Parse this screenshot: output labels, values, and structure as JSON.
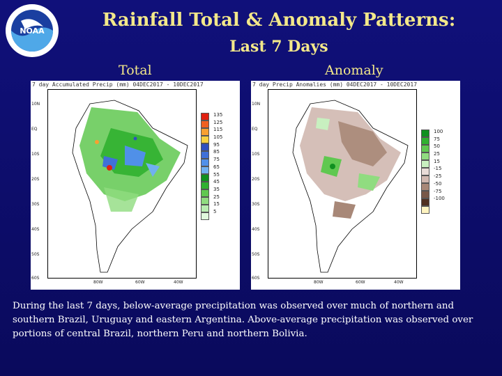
{
  "slide": {
    "title_line1": "Rainfall Total & Anomaly Patterns:",
    "title_line2": "Last 7 Days",
    "total_label": "Total",
    "anomaly_label": "Anomaly",
    "caption": "During the last 7 days, below-average precipitation was observed over much of northern and southern Brazil, Uruguay and eastern Argentina. Above-average precipitation was observed over portions of central Brazil, northern Peru and northern Bolivia."
  },
  "logo": {
    "text": "NOAA",
    "icon": "noaa-logo-icon"
  },
  "total_map": {
    "header": "7 day Accumulated Precip (mm) 04DEC2017 - 10DEC2017",
    "lat_labels": [
      "10N",
      "EQ",
      "10S",
      "20S",
      "30S",
      "40S",
      "50S",
      "60S"
    ],
    "lon_labels": [
      "80W",
      "60W",
      "40W"
    ],
    "legend": [
      {
        "value": "135",
        "color": "#e02010"
      },
      {
        "value": "125",
        "color": "#f06020"
      },
      {
        "value": "115",
        "color": "#f8a030"
      },
      {
        "value": "105",
        "color": "#f8d040"
      },
      {
        "value": "95",
        "color": "#3050c0"
      },
      {
        "value": "85",
        "color": "#4070d8"
      },
      {
        "value": "75",
        "color": "#5090e8"
      },
      {
        "value": "65",
        "color": "#70b0f0"
      },
      {
        "value": "55",
        "color": "#109020"
      },
      {
        "value": "45",
        "color": "#30b030"
      },
      {
        "value": "35",
        "color": "#60c850"
      },
      {
        "value": "25",
        "color": "#90dc80"
      },
      {
        "value": "15",
        "color": "#b8ecb0"
      },
      {
        "value": "5",
        "color": "#e0f8dc"
      }
    ]
  },
  "anomaly_map": {
    "header": "7 day Precip Anomalies (mm) 04DEC2017 - 10DEC2017",
    "lat_labels": [
      "10N",
      "EQ",
      "10S",
      "20S",
      "30S",
      "40S",
      "50S",
      "60S"
    ],
    "lon_labels": [
      "80W",
      "60W",
      "40W"
    ],
    "legend": [
      {
        "value": "100",
        "color": "#109020"
      },
      {
        "value": "75",
        "color": "#30b030"
      },
      {
        "value": "50",
        "color": "#60c850"
      },
      {
        "value": "25",
        "color": "#90dc80"
      },
      {
        "value": "15",
        "color": "#c8f0c0"
      },
      {
        "value": "-15",
        "color": "#e8dcd8"
      },
      {
        "value": "-25",
        "color": "#d0b8b0"
      },
      {
        "value": "-50",
        "color": "#a88878"
      },
      {
        "value": "-75",
        "color": "#785848"
      },
      {
        "value": "-100",
        "color": "#503020"
      },
      {
        "value": "",
        "color": "#fff4c0"
      }
    ]
  }
}
